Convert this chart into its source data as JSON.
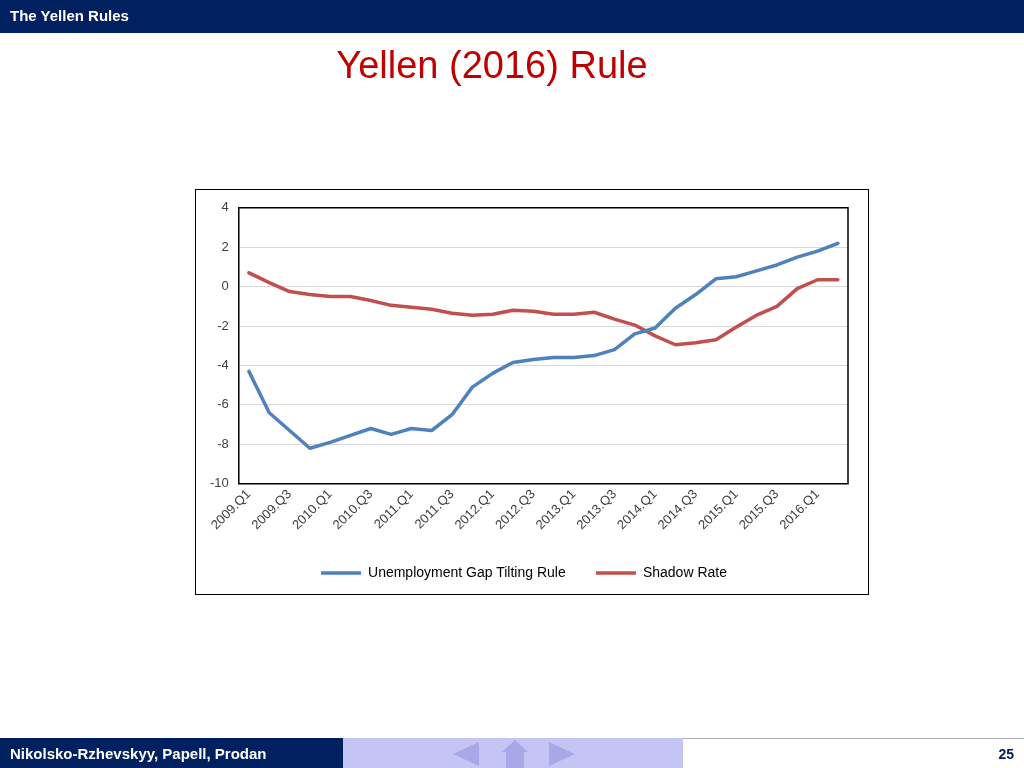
{
  "chart_data": {
    "type": "line",
    "title": "Yellen (2016) Rule",
    "categories": [
      "2009.Q1",
      null,
      "2009.Q3",
      null,
      "2010.Q1",
      null,
      "2010.Q3",
      null,
      "2011.Q1",
      null,
      "2011.Q3",
      null,
      "2012.Q1",
      null,
      "2012.Q3",
      null,
      "2013.Q1",
      null,
      "2013.Q3",
      null,
      "2014.Q1",
      null,
      "2014.Q3",
      null,
      "2015.Q1",
      null,
      "2015.Q3",
      null,
      "2016.Q1",
      null
    ],
    "series": [
      {
        "name": "Unemployment Gap Tilting Rule",
        "color": "#4f81bd",
        "values": [
          -4.3,
          -6.4,
          -7.3,
          -8.2,
          -7.9,
          -7.55,
          -7.2,
          -7.5,
          -7.2,
          -7.3,
          -6.5,
          -5.1,
          -4.4,
          -3.85,
          -3.7,
          -3.6,
          -3.6,
          -3.5,
          -3.2,
          -2.4,
          -2.1,
          -1.1,
          -0.4,
          0.4,
          0.5,
          0.8,
          1.1,
          1.5,
          1.8,
          2.2
        ]
      },
      {
        "name": "Shadow Rate",
        "color": "#c0504d",
        "values": [
          0.7,
          0.2,
          -0.25,
          -0.4,
          -0.5,
          -0.5,
          -0.7,
          -0.95,
          -1.05,
          -1.15,
          -1.35,
          -1.45,
          -1.4,
          -1.2,
          -1.25,
          -1.4,
          -1.4,
          -1.3,
          -1.65,
          -1.95,
          -2.5,
          -2.95,
          -2.85,
          -2.7,
          -2.05,
          -1.45,
          -1.0,
          -0.1,
          0.35,
          0.35
        ]
      }
    ],
    "ylim": [
      -10,
      4
    ],
    "yticks": [
      -10,
      -8,
      -6,
      -4,
      -2,
      0,
      2,
      4
    ],
    "grid": "y",
    "legend": "bottom",
    "marker": "none",
    "line_style": "solid",
    "annotations": [
      "The Yellen Rules",
      "Nikolsko-Rzhevskyy, Papell, Prodan",
      "25"
    ]
  }
}
